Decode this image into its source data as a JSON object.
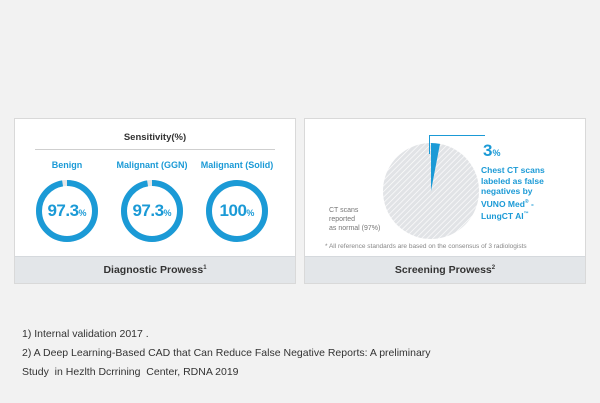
{
  "colors": {
    "accent": "#1b9ad6",
    "track": "#e6e6e6",
    "pie_fill": "#e1e3e6",
    "footer_bg": "#e3e6e9"
  },
  "diagnostic": {
    "title": "Sensitivity(%)",
    "footer": "Diagnostic Prowess",
    "footer_sup": "1",
    "items": [
      {
        "label": "Benign",
        "value": "97.3",
        "unit": "%",
        "fraction": 0.973
      },
      {
        "label": "Malignant (GGN)",
        "value": "97.3",
        "unit": "%",
        "fraction": 0.973
      },
      {
        "label": "Malignant (Solid)",
        "value": "100",
        "unit": "%",
        "fraction": 1.0
      }
    ]
  },
  "screening": {
    "highlight_value": "3",
    "highlight_unit": "%",
    "highlight_fraction": 0.03,
    "callout_line1": "Chest CT scans",
    "callout_line2": "labeled as false",
    "callout_line3": "negatives  by",
    "callout_line4a": "VUNO Med",
    "callout_line4_sup": "®",
    "callout_line4b": " -",
    "callout_line5a": "LungCT AI",
    "callout_line5_sup": "™",
    "normal_line1": "CT scans",
    "normal_line2": "reported",
    "normal_line3": "as normal (97%)",
    "note": "* All reference standards are based on the consensus of 3 radiologists",
    "footer": "Screening Prowess",
    "footer_sup": "2"
  },
  "footnotes": [
    "1) Internal validation 2017 .",
    "2) A Deep Learning-Based CAD that Can Reduce False Negative Reports: A preliminary",
    "Study  in Hezlth Dcrrining  Center, RDNA 2019"
  ]
}
